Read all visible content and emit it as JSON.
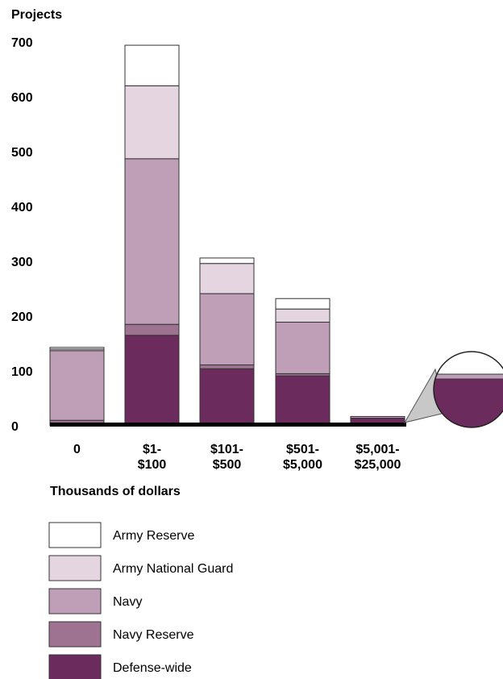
{
  "chart_data": {
    "type": "bar",
    "stacked": true,
    "ylabel": "Projects",
    "xlabel": "Thousands of dollars",
    "ylim": [
      0,
      700
    ],
    "yticks": [
      "0",
      "100",
      "200",
      "300",
      "400",
      "500",
      "600",
      "700"
    ],
    "categories": [
      [
        "0"
      ],
      [
        "$1-",
        "$100"
      ],
      [
        "$101-",
        "$500"
      ],
      [
        "$501-",
        "$5,000"
      ],
      [
        "$5,001-",
        "$25,000"
      ]
    ],
    "series": [
      {
        "name": "Defense-wide",
        "color": "#6b2b5c",
        "values": [
          3,
          165,
          104,
          91,
          14
        ]
      },
      {
        "name": "Navy Reserve",
        "color": "#9e7391",
        "values": [
          7,
          20,
          7,
          4,
          0
        ]
      },
      {
        "name": "Navy",
        "color": "#bf9fb8",
        "values": [
          127,
          302,
          130,
          94,
          3
        ]
      },
      {
        "name": "Army National Guard",
        "color": "#e4d5e0",
        "values": [
          3,
          133,
          55,
          24,
          0
        ]
      },
      {
        "name": "Army Reserve",
        "color": "#ffffff",
        "values": [
          3,
          74,
          10,
          19,
          0
        ]
      }
    ],
    "legend_order": [
      "Army Reserve",
      "Army National Guard",
      "Navy",
      "Navy Reserve",
      "Defense-wide"
    ],
    "legend_position": "bottom-left",
    "grid": false,
    "inset_magnifier": true
  }
}
